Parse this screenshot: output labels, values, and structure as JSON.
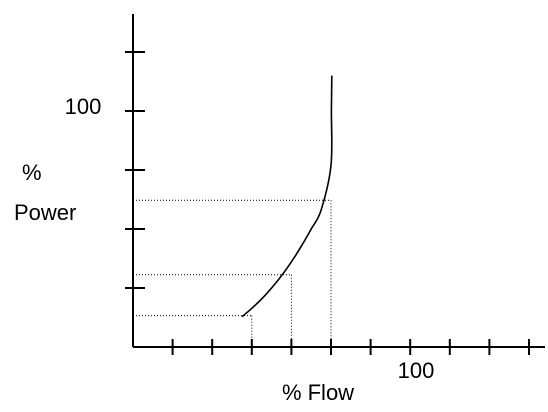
{
  "chart_data": {
    "type": "line",
    "title": "",
    "xlabel": "% Flow",
    "ylabel": [
      "%",
      "Power"
    ],
    "xlim": [
      0,
      200
    ],
    "ylim": [
      0,
      125
    ],
    "x_ticks": [
      20,
      40,
      60,
      80,
      100,
      120,
      140,
      160,
      180,
      200
    ],
    "y_ticks": [
      25,
      50,
      75,
      100,
      125
    ],
    "tick_labels": {
      "x_100": "100",
      "y_100": "100"
    },
    "grid": false,
    "series": [
      {
        "x": [
          55,
          60,
          65,
          70,
          75,
          80,
          85,
          90,
          95,
          100,
          100.2,
          100.4
        ],
        "y": [
          12.8,
          16.4,
          20.4,
          25.0,
          30.2,
          36.1,
          42.7,
          50.0,
          58.0,
          77.0,
          100.0,
          115.0
        ],
        "color": "#000000"
      }
    ],
    "annotations": [
      {
        "x": 60,
        "y": 13.3
      },
      {
        "x": 80,
        "y": 30.6
      },
      {
        "x": 100,
        "y": 62.2
      }
    ]
  }
}
